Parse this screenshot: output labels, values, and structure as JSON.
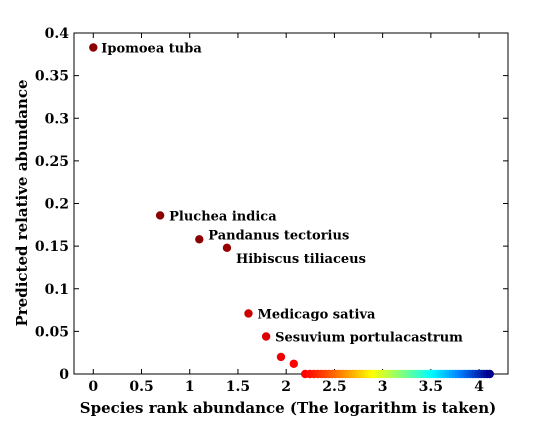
{
  "chart_data": {
    "type": "scatter",
    "xlabel": "Species rank abundance (The logarithm is taken)",
    "ylabel": "Predicted relative abundance",
    "xlim": [
      -0.2,
      4.3
    ],
    "ylim": [
      0,
      0.4
    ],
    "xticks": [
      "0",
      "0.5",
      "1",
      "1.5",
      "2",
      "2.5",
      "3",
      "3.5",
      "4"
    ],
    "xtick_values": [
      0,
      0.5,
      1,
      1.5,
      2,
      2.5,
      3,
      3.5,
      4
    ],
    "yticks": [
      "0",
      "0.05",
      "0.1",
      "0.15",
      "0.2",
      "0.25",
      "0.3",
      "0.35",
      "0.4"
    ],
    "ytick_values": [
      0,
      0.05,
      0.1,
      0.15,
      0.2,
      0.25,
      0.3,
      0.35,
      0.4
    ],
    "grid": false,
    "points": [
      {
        "x": 0.0,
        "y": 0.383,
        "label": "Ipomoea tuba",
        "color": "#8b0000"
      },
      {
        "x": 0.693,
        "y": 0.186,
        "label": "Pluchea indica",
        "color": "#8b0000"
      },
      {
        "x": 1.099,
        "y": 0.158,
        "label": "Pandanus tectorius",
        "color": "#8b0000"
      },
      {
        "x": 1.386,
        "y": 0.148,
        "label": "Hibiscus tiliaceus",
        "color": "#990000"
      },
      {
        "x": 1.609,
        "y": 0.071,
        "label": "Medicago sativa",
        "color": "#cc0000"
      },
      {
        "x": 1.792,
        "y": 0.044,
        "label": "Sesuvium portulacastrum",
        "color": "#dd0000"
      },
      {
        "x": 1.946,
        "y": 0.02,
        "label": "",
        "color": "#ee0000"
      },
      {
        "x": 2.079,
        "y": 0.012,
        "label": "",
        "color": "#ff0000"
      }
    ],
    "tail_series": {
      "x_start": 2.197,
      "x_end": 4.111,
      "count": 60,
      "y": 0.0,
      "colormap": [
        "#ff0000",
        "#ff7f00",
        "#ffff00",
        "#7fff7f",
        "#00ffff",
        "#007fff",
        "#00008f"
      ]
    }
  }
}
